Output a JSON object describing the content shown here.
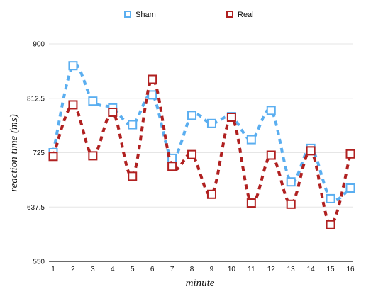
{
  "chart_data": {
    "type": "line",
    "xlabel": "minute",
    "ylabel": "reaction time (ms)",
    "x": [
      1,
      2,
      3,
      4,
      5,
      6,
      7,
      8,
      9,
      10,
      11,
      12,
      13,
      14,
      15,
      16
    ],
    "ylim": [
      550,
      900
    ],
    "yticks": [
      550,
      637.5,
      725,
      812.5,
      900
    ],
    "grid": true,
    "legend": "top-center",
    "series": [
      {
        "name": "Sham",
        "color": "#5aaef0",
        "marker": "square",
        "line": "dashed-smooth",
        "values": [
          725,
          865,
          808,
          797,
          770,
          818,
          716,
          785,
          772,
          783,
          746,
          793,
          678,
          732,
          651,
          668
        ]
      },
      {
        "name": "Real",
        "color": "#b02020",
        "marker": "square",
        "line": "dashed-smooth",
        "values": [
          719,
          802,
          720,
          790,
          687,
          843,
          703,
          722,
          658,
          782,
          644,
          721,
          642,
          728,
          609,
          723
        ]
      }
    ]
  }
}
